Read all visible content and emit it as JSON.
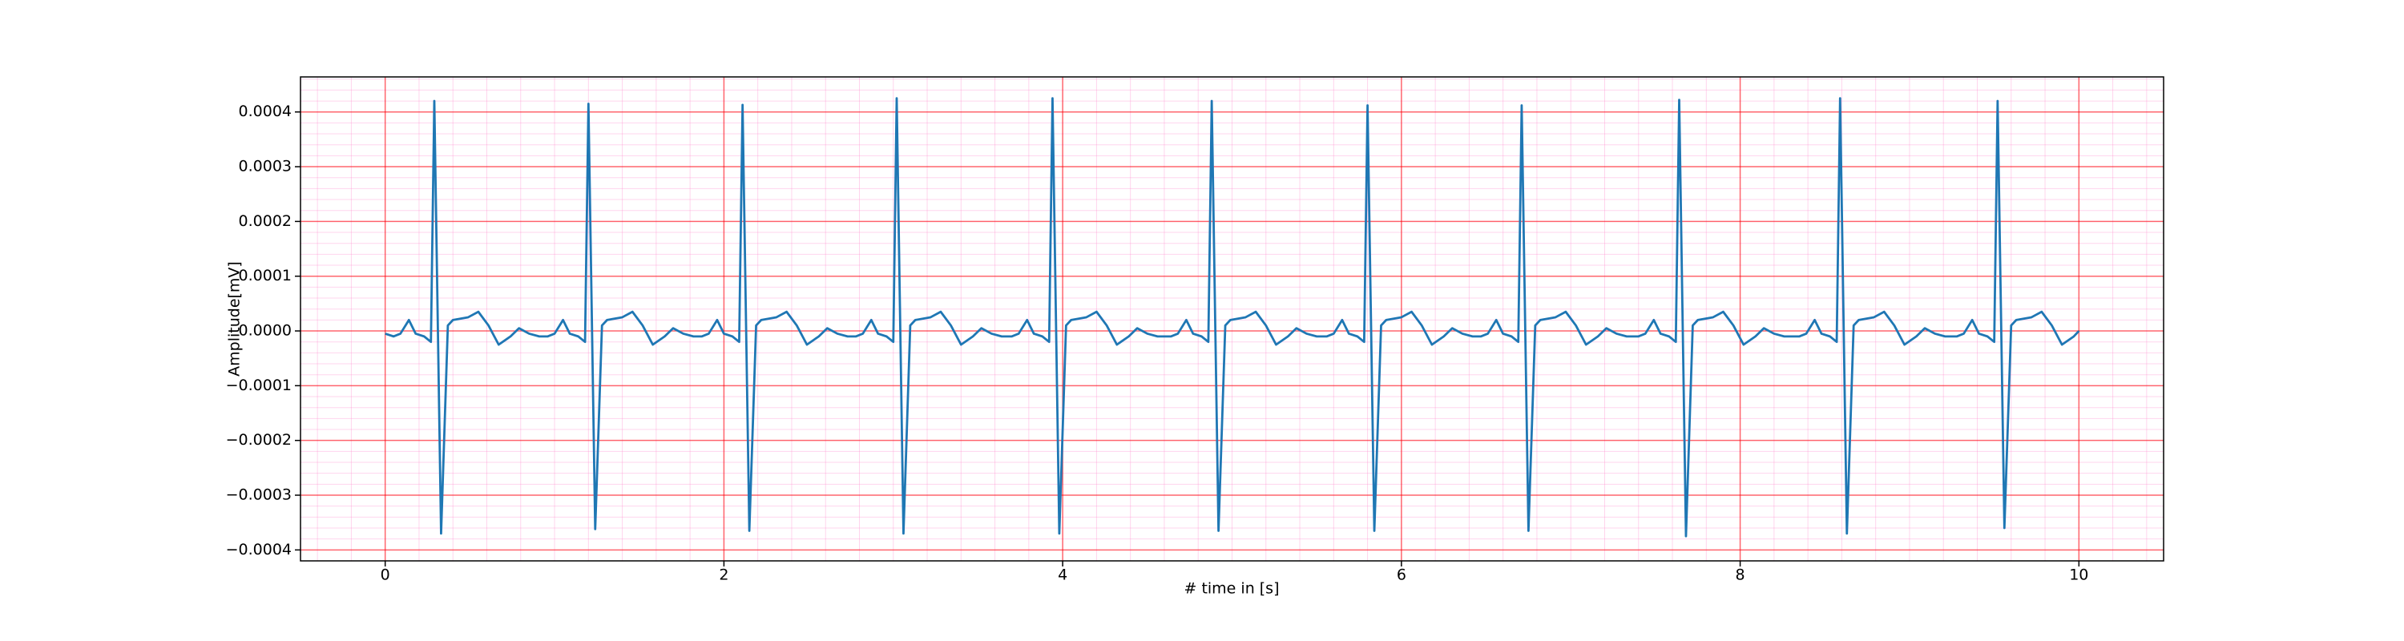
{
  "chart_data": {
    "type": "line",
    "xlabel": "# time in [s]",
    "ylabel": "Amplitude[mV]",
    "color": "#1f77b4",
    "grid": true,
    "minor_grid": true,
    "xlim": [
      -0.5,
      10.5
    ],
    "ylim": [
      -0.00042,
      0.000464
    ],
    "xticks": [
      0,
      2,
      4,
      6,
      8,
      10
    ],
    "yticks": [
      {
        "value": -0.0004,
        "label": "−0.0004"
      },
      {
        "value": -0.0003,
        "label": "−0.0003"
      },
      {
        "value": -0.0002,
        "label": "−0.0002"
      },
      {
        "value": -0.0001,
        "label": "−0.0001"
      },
      {
        "value": 0,
        "label": "0.0000"
      },
      {
        "value": 0.0001,
        "label": "0.0001"
      },
      {
        "value": 0.0002,
        "label": "0.0002"
      },
      {
        "value": 0.0003,
        "label": "0.0003"
      },
      {
        "value": 0.0004,
        "label": "0.0004"
      }
    ],
    "x": [
      0,
      0.05,
      0.09,
      0.14,
      0.18,
      0.23,
      0.27,
      0.29,
      0.33,
      0.37,
      0.4,
      0.49,
      0.55,
      0.61,
      0.67,
      0.74,
      0.79,
      0.85,
      0.91,
      0.96,
      1.0,
      1.05,
      1.09,
      1.14,
      1.18,
      1.2,
      1.24,
      1.28,
      1.31,
      1.4,
      1.46,
      1.52,
      1.58,
      1.65,
      1.7,
      1.76,
      1.82,
      1.87,
      1.91,
      1.96,
      2.0,
      2.05,
      2.09,
      2.11,
      2.15,
      2.19,
      2.22,
      2.31,
      2.37,
      2.43,
      2.49,
      2.56,
      2.61,
      2.67,
      2.73,
      2.78,
      2.82,
      2.87,
      2.91,
      2.96,
      3.0,
      3.02,
      3.06,
      3.1,
      3.13,
      3.22,
      3.28,
      3.34,
      3.4,
      3.47,
      3.52,
      3.58,
      3.64,
      3.7,
      3.74,
      3.79,
      3.83,
      3.88,
      3.92,
      3.94,
      3.98,
      4.02,
      4.05,
      4.14,
      4.2,
      4.26,
      4.32,
      4.39,
      4.44,
      4.5,
      4.56,
      4.64,
      4.68,
      4.73,
      4.77,
      4.82,
      4.86,
      4.88,
      4.92,
      4.96,
      4.99,
      5.08,
      5.14,
      5.2,
      5.26,
      5.33,
      5.38,
      5.44,
      5.5,
      5.56,
      5.6,
      5.65,
      5.69,
      5.74,
      5.78,
      5.8,
      5.84,
      5.88,
      5.91,
      6.0,
      6.06,
      6.12,
      6.18,
      6.25,
      6.3,
      6.36,
      6.42,
      6.47,
      6.51,
      6.56,
      6.6,
      6.65,
      6.69,
      6.71,
      6.75,
      6.79,
      6.82,
      6.91,
      6.97,
      7.03,
      7.09,
      7.16,
      7.21,
      7.27,
      7.33,
      7.4,
      7.44,
      7.49,
      7.53,
      7.58,
      7.62,
      7.64,
      7.68,
      7.72,
      7.75,
      7.84,
      7.9,
      7.96,
      8.02,
      8.09,
      8.14,
      8.2,
      8.26,
      8.35,
      8.39,
      8.44,
      8.48,
      8.53,
      8.57,
      8.59,
      8.63,
      8.67,
      8.7,
      8.79,
      8.85,
      8.91,
      8.97,
      9.04,
      9.09,
      9.15,
      9.21,
      9.28,
      9.32,
      9.37,
      9.41,
      9.46,
      9.5,
      9.52,
      9.56,
      9.6,
      9.63,
      9.72,
      9.78,
      9.84,
      9.9,
      9.97,
      10.0
    ],
    "values": [
      -5e-06,
      -1e-05,
      -5e-06,
      2e-05,
      -5e-06,
      -1e-05,
      -2e-05,
      0.00042,
      -0.00037,
      1e-05,
      2e-05,
      2.5e-05,
      3.5e-05,
      1e-05,
      -2.5e-05,
      -1e-05,
      5e-06,
      -5e-06,
      -1e-05,
      -1e-05,
      -5e-06,
      2e-05,
      -5e-06,
      -1e-05,
      -2e-05,
      0.000415,
      -0.000362,
      1e-05,
      2e-05,
      2.5e-05,
      3.5e-05,
      1e-05,
      -2.5e-05,
      -1e-05,
      5e-06,
      -5e-06,
      -1e-05,
      -1e-05,
      -5e-06,
      2e-05,
      -5e-06,
      -1e-05,
      -2e-05,
      0.000413,
      -0.000365,
      1e-05,
      2e-05,
      2.5e-05,
      3.5e-05,
      1e-05,
      -2.5e-05,
      -1e-05,
      5e-06,
      -5e-06,
      -1e-05,
      -1e-05,
      -5e-06,
      2e-05,
      -5e-06,
      -1e-05,
      -2e-05,
      0.000425,
      -0.00037,
      1e-05,
      2e-05,
      2.5e-05,
      3.5e-05,
      1e-05,
      -2.5e-05,
      -1e-05,
      5e-06,
      -5e-06,
      -1e-05,
      -1e-05,
      -5e-06,
      2e-05,
      -5e-06,
      -1e-05,
      -2e-05,
      0.000425,
      -0.00037,
      1e-05,
      2e-05,
      2.5e-05,
      3.5e-05,
      1e-05,
      -2.5e-05,
      -1e-05,
      5e-06,
      -5e-06,
      -1e-05,
      -1e-05,
      -5e-06,
      2e-05,
      -5e-06,
      -1e-05,
      -2e-05,
      0.00042,
      -0.000365,
      1e-05,
      2e-05,
      2.5e-05,
      3.5e-05,
      1e-05,
      -2.5e-05,
      -1e-05,
      5e-06,
      -5e-06,
      -1e-05,
      -1e-05,
      -5e-06,
      2e-05,
      -5e-06,
      -1e-05,
      -2e-05,
      0.000412,
      -0.000365,
      1e-05,
      2e-05,
      2.5e-05,
      3.5e-05,
      1e-05,
      -2.5e-05,
      -1e-05,
      5e-06,
      -5e-06,
      -1e-05,
      -1e-05,
      -5e-06,
      2e-05,
      -5e-06,
      -1e-05,
      -2e-05,
      0.000412,
      -0.000365,
      1e-05,
      2e-05,
      2.5e-05,
      3.5e-05,
      1e-05,
      -2.5e-05,
      -1e-05,
      5e-06,
      -5e-06,
      -1e-05,
      -1e-05,
      -5e-06,
      2e-05,
      -5e-06,
      -1e-05,
      -2e-05,
      0.000422,
      -0.000375,
      1e-05,
      2e-05,
      2.5e-05,
      3.5e-05,
      1e-05,
      -2.5e-05,
      -1e-05,
      5e-06,
      -5e-06,
      -1e-05,
      -1e-05,
      -5e-06,
      2e-05,
      -5e-06,
      -1e-05,
      -2e-05,
      0.000425,
      -0.00037,
      1e-05,
      2e-05,
      2.5e-05,
      3.5e-05,
      1e-05,
      -2.5e-05,
      -1e-05,
      5e-06,
      -5e-06,
      -1e-05,
      -1e-05,
      -5e-06,
      2e-05,
      -5e-06,
      -1e-05,
      -2e-05,
      0.00042,
      -0.00036,
      1e-05,
      2e-05,
      2.5e-05,
      3.5e-05,
      1e-05,
      -2.5e-05,
      -1e-05,
      0
    ]
  }
}
